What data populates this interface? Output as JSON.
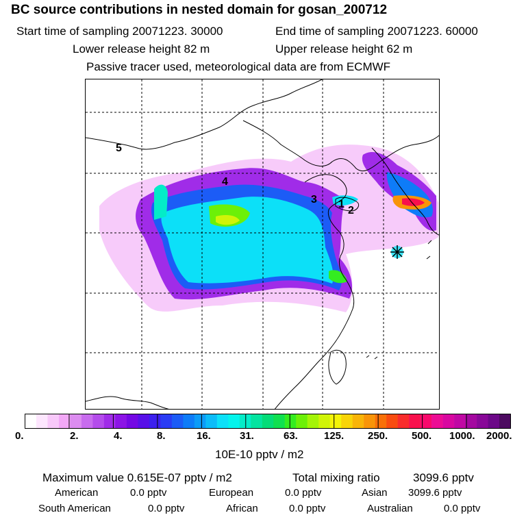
{
  "header": {
    "title": "BC  source contributions in nested domain for gosan_200712",
    "start_label": "Start time of sampling 20071223. 30000",
    "end_label": "End time of sampling 20071223. 60000",
    "lower_label": "Lower release height   82 m",
    "upper_label": "Upper release height   62 m",
    "tracer_label": "Passive tracer used, meteorological data are from ECMWF"
  },
  "map": {
    "labels": [
      "5",
      "4",
      "3",
      "1",
      "2"
    ],
    "receptor_marker": "star-marker"
  },
  "colorbar": {
    "ticks": [
      "0.",
      "2.",
      "4.",
      "8.",
      "16.",
      "31.",
      "63.",
      "125.",
      "250.",
      "500.",
      "1000.",
      "2000."
    ],
    "colors": [
      "#ffffff",
      "#fde6fe",
      "#f8c8fa",
      "#f2a8f6",
      "#dc8cf0",
      "#c86cee",
      "#b44ceb",
      "#a02ce8",
      "#8c14e6",
      "#7408e4",
      "#5810e8",
      "#3c20ee",
      "#2a3cf4",
      "#1c5cf6",
      "#0e7cf8",
      "#0c9cf8",
      "#0cbcf8",
      "#0ce0f8",
      "#04f4ec",
      "#04ecc8",
      "#04e4a0",
      "#04dc78",
      "#10e050",
      "#34ec20",
      "#6cf008",
      "#a4f408",
      "#d0f408",
      "#f4f408",
      "#f8d408",
      "#f8b408",
      "#f89408",
      "#f87008",
      "#f84c10",
      "#f82c2c",
      "#f8104c",
      "#f8086c",
      "#ec0c94",
      "#d808a0",
      "#c008a4",
      "#a408a0",
      "#880898",
      "#6c0888",
      "#4c0a60"
    ],
    "unit_label": "10E-10 pptv / m2"
  },
  "footer": {
    "max_label": "Maximum value  0.615E-07 pptv / m2",
    "total_label": "Total mixing ratio",
    "total_value": "3099.6 pptv",
    "american_label": "American",
    "american_value": "0.0 pptv",
    "european_label": "European",
    "european_value": "0.0 pptv",
    "asian_label": "Asian",
    "asian_value": "3099.6 pptv",
    "south_american_label": "South American",
    "south_american_value": "0.0 pptv",
    "african_label": "African",
    "african_value": "0.0 pptv",
    "australian_label": "Australian",
    "australian_value": "0.0 pptv"
  }
}
